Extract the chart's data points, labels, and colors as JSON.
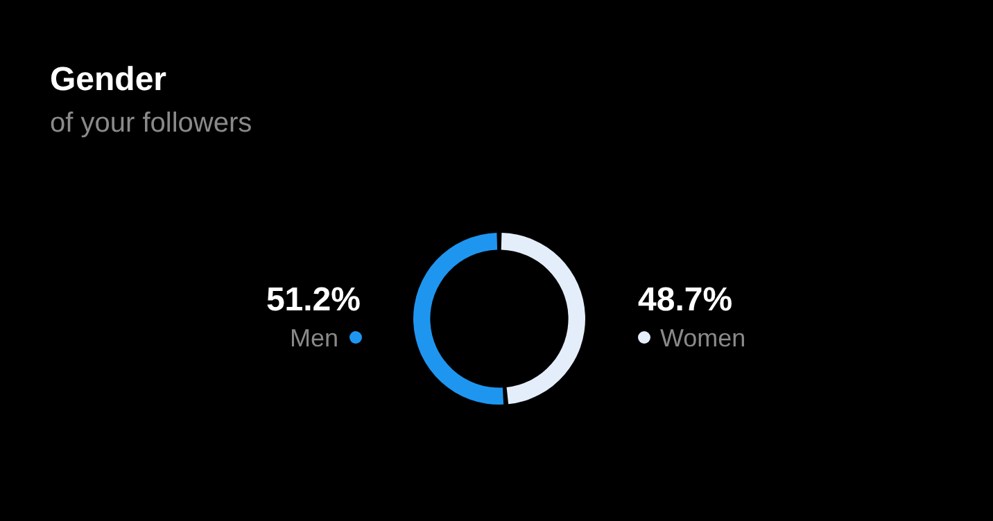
{
  "chart_data": {
    "type": "donut",
    "title": "Gender",
    "subtitle": "of your followers",
    "categories": [
      "Men",
      "Women"
    ],
    "values": [
      51.2,
      48.7
    ],
    "colors": [
      "#1e96f0",
      "#e4eefa"
    ],
    "value_labels": [
      "51.2%",
      "48.7%"
    ]
  }
}
